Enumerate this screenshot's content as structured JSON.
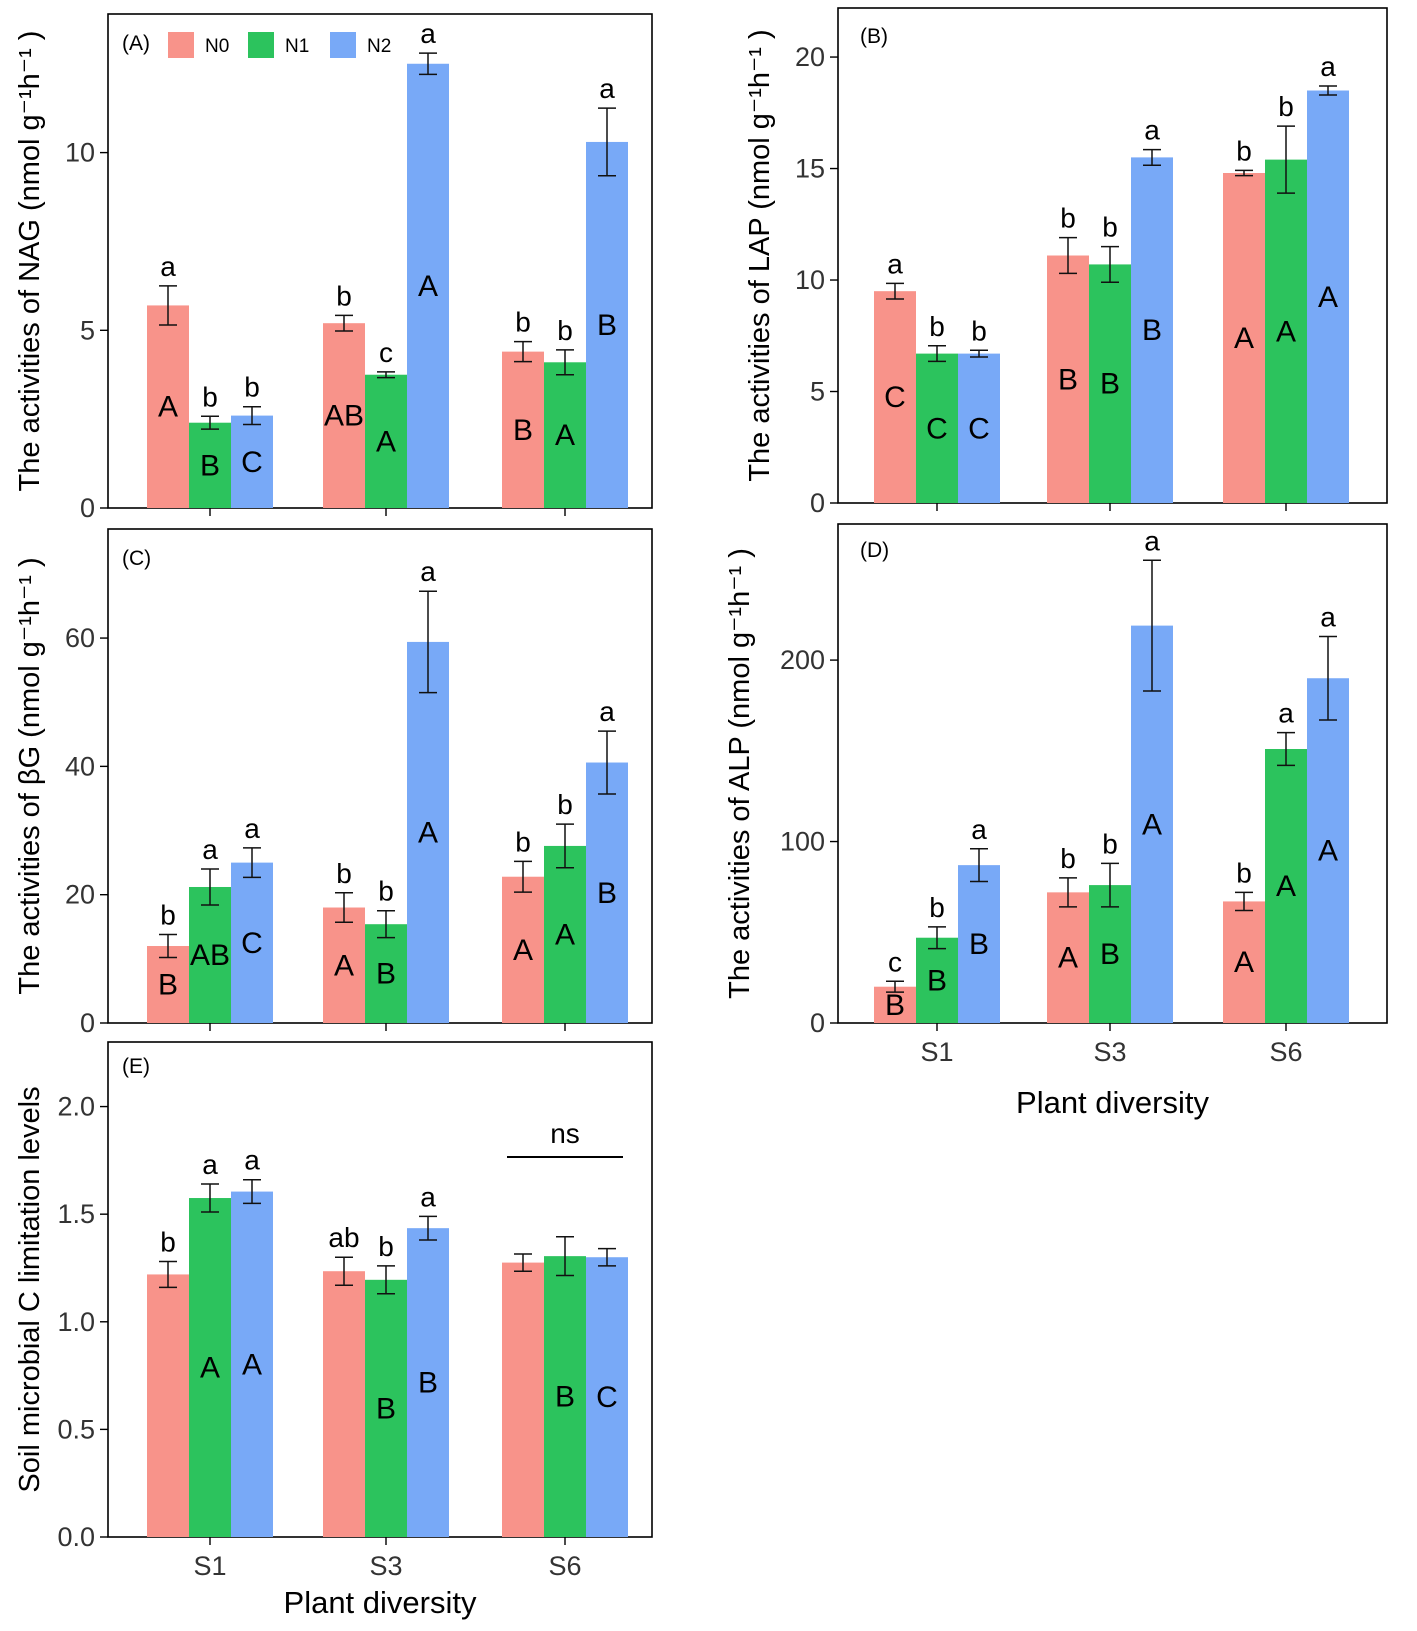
{
  "legend": [
    {
      "label": "N0",
      "color": "#F8938A"
    },
    {
      "label": "N1",
      "color": "#2CC35D"
    },
    {
      "label": "N2",
      "color": "#78A9F7"
    }
  ],
  "chart_data": [
    {
      "id": "A",
      "type": "bar",
      "panel_label": "(A)",
      "categories": [
        "S1",
        "S3",
        "S6"
      ],
      "ylabel": "The activities of NAG (nmol g⁻¹h⁻¹ )",
      "ylim": [
        0,
        13.9
      ],
      "yticks": [
        "0",
        "5",
        "10"
      ],
      "series": [
        {
          "name": "N0",
          "values": [
            5.7,
            5.2,
            4.4
          ],
          "errors": [
            0.55,
            0.22,
            0.28
          ],
          "lower": [
            "a",
            "b",
            "b"
          ],
          "upper": [
            "A",
            "AB",
            "B"
          ]
        },
        {
          "name": "N1",
          "values": [
            2.4,
            3.75,
            4.1
          ],
          "errors": [
            0.18,
            0.08,
            0.35
          ],
          "lower": [
            "b",
            "c",
            "b"
          ],
          "upper": [
            "B",
            "A",
            "A"
          ]
        },
        {
          "name": "N2",
          "values": [
            2.6,
            12.5,
            10.3
          ],
          "errors": [
            0.25,
            0.3,
            0.95
          ],
          "lower": [
            "b",
            "a",
            "a"
          ],
          "upper": [
            "C",
            "A",
            "B"
          ]
        }
      ]
    },
    {
      "id": "B",
      "type": "bar",
      "panel_label": "(B)",
      "categories": [
        "S1",
        "S3",
        "S6"
      ],
      "ylabel": "The activities of LAP (nmol g⁻¹h⁻¹ )",
      "ylim": [
        0,
        22.2
      ],
      "yticks": [
        "0",
        "5",
        "10",
        "15",
        "20"
      ],
      "series": [
        {
          "name": "N0",
          "values": [
            9.5,
            11.1,
            14.8
          ],
          "errors": [
            0.35,
            0.8,
            0.12
          ],
          "lower": [
            "a",
            "b",
            "b"
          ],
          "upper": [
            "C",
            "B",
            "A"
          ]
        },
        {
          "name": "N1",
          "values": [
            6.7,
            10.7,
            15.4
          ],
          "errors": [
            0.35,
            0.8,
            1.5
          ],
          "lower": [
            "b",
            "b",
            "b"
          ],
          "upper": [
            "C",
            "B",
            "A"
          ]
        },
        {
          "name": "N2",
          "values": [
            6.7,
            15.5,
            18.5
          ],
          "errors": [
            0.15,
            0.35,
            0.2
          ],
          "lower": [
            "b",
            "a",
            "a"
          ],
          "upper": [
            "C",
            "B",
            "A"
          ]
        }
      ]
    },
    {
      "id": "C",
      "type": "bar",
      "panel_label": "(C)",
      "categories": [
        "S1",
        "S3",
        "S6"
      ],
      "ylabel": "The activities of βG (nmol g⁻¹h⁻¹ )",
      "ylim": [
        0,
        77
      ],
      "yticks": [
        "0",
        "20",
        "40",
        "60"
      ],
      "series": [
        {
          "name": "N0",
          "values": [
            12,
            18,
            22.8
          ],
          "errors": [
            1.8,
            2.3,
            2.4
          ],
          "lower": [
            "b",
            "b",
            "b"
          ],
          "upper": [
            "B",
            "A",
            "A"
          ]
        },
        {
          "name": "N1",
          "values": [
            21.2,
            15.4,
            27.6
          ],
          "errors": [
            2.8,
            2.1,
            3.4
          ],
          "lower": [
            "a",
            "b",
            "b"
          ],
          "upper": [
            "AB",
            "B",
            "A"
          ]
        },
        {
          "name": "N2",
          "values": [
            25,
            59.4,
            40.6
          ],
          "errors": [
            2.3,
            7.9,
            4.9
          ],
          "lower": [
            "a",
            "a",
            "a"
          ],
          "upper": [
            "C",
            "A",
            "B"
          ]
        }
      ]
    },
    {
      "id": "D",
      "type": "bar",
      "panel_label": "(D)",
      "categories": [
        "S1",
        "S3",
        "S6"
      ],
      "xlabel": "Plant diversity",
      "ylabel": "The activities of ALP (nmol g⁻¹h⁻¹ )",
      "ylim": [
        0,
        275
      ],
      "yticks": [
        "0",
        "100",
        "200"
      ],
      "series": [
        {
          "name": "N0",
          "values": [
            20,
            72,
            67
          ],
          "errors": [
            3,
            8,
            5
          ],
          "lower": [
            "c",
            "b",
            "b"
          ],
          "upper": [
            "B",
            "A",
            "A"
          ]
        },
        {
          "name": "N1",
          "values": [
            47,
            76,
            151
          ],
          "errors": [
            6,
            12,
            9
          ],
          "lower": [
            "b",
            "b",
            "a"
          ],
          "upper": [
            "B",
            "B",
            "A"
          ]
        },
        {
          "name": "N2",
          "values": [
            87,
            219,
            190
          ],
          "errors": [
            9,
            36,
            23
          ],
          "lower": [
            "a",
            "a",
            "a"
          ],
          "upper": [
            "B",
            "A",
            "A"
          ]
        }
      ]
    },
    {
      "id": "E",
      "type": "bar",
      "panel_label": "(E)",
      "categories": [
        "S1",
        "S3",
        "S6"
      ],
      "xlabel": "Plant diversity",
      "ylabel": "Soil microbial C limitation levels",
      "ylim": [
        0,
        2.3
      ],
      "yticks": [
        "0.0",
        "0.5",
        "1.0",
        "1.5",
        "2.0"
      ],
      "ns_label": "ns",
      "series": [
        {
          "name": "N0",
          "values": [
            1.22,
            1.235,
            1.275
          ],
          "errors": [
            0.06,
            0.065,
            0.04
          ],
          "lower": [
            "b",
            "ab",
            ""
          ],
          "upper": [
            "",
            "",
            ""
          ]
        },
        {
          "name": "N1",
          "values": [
            1.575,
            1.195,
            1.305
          ],
          "errors": [
            0.065,
            0.065,
            0.09
          ],
          "lower": [
            "a",
            "b",
            ""
          ],
          "upper": [
            "A",
            "B",
            "B"
          ]
        },
        {
          "name": "N2",
          "values": [
            1.605,
            1.435,
            1.3
          ],
          "errors": [
            0.055,
            0.055,
            0.04
          ],
          "lower": [
            "a",
            "a",
            ""
          ],
          "upper": [
            "A",
            "B",
            "C"
          ]
        }
      ]
    }
  ]
}
